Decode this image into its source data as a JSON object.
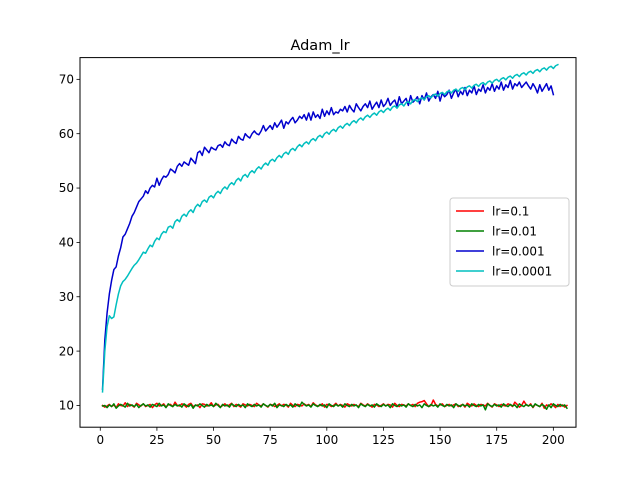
{
  "chart_data": {
    "type": "line",
    "title": "Adam_lr",
    "xlabel": "",
    "ylabel": "",
    "xlim": [
      -8.95,
      210
    ],
    "ylim": [
      6.0,
      74.0
    ],
    "xticks": [
      0,
      25,
      50,
      75,
      100,
      125,
      150,
      175,
      200
    ],
    "yticks": [
      10,
      20,
      30,
      40,
      50,
      60,
      70
    ],
    "grid": false,
    "legend_position": "center-right",
    "series": [
      {
        "name": "lr=0.1",
        "color": "#ff0000",
        "x_start": 1,
        "values": [
          10.0,
          9.7,
          9.9,
          10.2,
          9.8,
          10.1,
          9.6,
          10.3,
          10.0,
          9.9,
          10.5,
          9.8,
          10.2,
          10.0,
          9.7,
          10.4,
          10.1,
          9.9,
          10.3,
          9.8,
          10.0,
          10.2,
          9.6,
          10.1,
          10.4,
          9.9,
          10.0,
          10.3,
          9.7,
          10.1,
          10.2,
          9.8,
          10.6,
          10.0,
          9.9,
          10.3,
          10.1,
          9.7,
          10.2,
          10.4,
          9.8,
          10.0,
          10.1,
          9.6,
          10.3,
          10.2,
          9.9,
          10.0,
          10.5,
          9.8,
          10.1,
          10.2,
          9.7,
          10.0,
          10.3,
          9.9,
          10.1,
          10.4,
          9.8,
          10.2,
          10.0,
          9.7,
          10.3,
          10.1,
          9.9,
          10.2,
          10.0,
          9.8,
          10.4,
          10.1,
          9.9,
          10.3,
          10.0,
          9.7,
          10.2,
          10.1,
          9.8,
          10.0,
          10.3,
          9.9,
          10.2,
          10.1,
          9.7,
          10.4,
          10.0,
          9.8,
          10.2,
          10.1,
          9.9,
          10.3,
          10.0,
          10.2,
          9.8,
          10.5,
          10.1,
          9.9,
          10.0,
          10.3,
          9.7,
          10.2,
          10.1,
          9.8,
          10.0,
          10.4,
          9.9,
          10.2,
          10.0,
          9.7,
          10.3,
          10.1,
          9.9,
          10.2,
          10.0,
          9.8,
          10.4,
          10.1,
          9.9,
          10.3,
          10.0,
          9.7,
          10.2,
          10.1,
          9.8,
          10.0,
          10.3,
          9.9,
          10.2,
          10.1,
          9.7,
          10.4,
          10.0,
          9.8,
          10.2,
          10.1,
          9.9,
          10.3,
          10.0,
          10.2,
          9.8,
          10.4,
          10.6,
          10.7,
          10.9,
          10.3,
          9.8,
          10.0,
          11.0,
          10.2,
          9.9,
          10.1,
          10.3,
          9.8,
          10.0,
          10.2,
          9.9,
          10.1,
          10.3,
          9.8,
          10.0,
          10.2,
          9.7,
          10.4,
          10.1,
          9.9,
          10.3,
          10.0,
          9.8,
          10.2,
          10.1,
          9.9,
          10.4,
          10.0,
          9.7,
          10.3,
          10.1,
          9.8,
          10.2,
          10.0,
          9.9,
          10.3,
          10.1,
          9.8,
          10.6,
          10.2,
          9.7,
          10.0,
          10.8,
          10.1,
          9.9,
          10.3,
          9.6,
          10.2,
          10.0,
          9.8,
          10.4,
          9.5,
          10.1,
          9.9,
          10.3,
          10.0,
          9.6,
          10.2,
          9.8,
          10.1,
          9.7,
          10.0
        ]
      },
      {
        "name": "lr=0.01",
        "color": "#008000",
        "x_start": 1,
        "values": [
          9.9,
          10.0,
          9.6,
          10.1,
          9.8,
          10.3,
          9.5,
          9.9,
          10.2,
          10.0,
          9.7,
          10.4,
          9.9,
          10.1,
          9.8,
          10.2,
          9.6,
          10.0,
          10.3,
          9.9,
          10.1,
          9.7,
          10.2,
          10.0,
          9.8,
          10.4,
          9.9,
          10.1,
          9.6,
          10.3,
          10.0,
          9.8,
          10.2,
          9.9,
          10.1,
          9.7,
          10.3,
          10.0,
          9.8,
          10.2,
          9.5,
          10.1,
          9.9,
          10.3,
          10.0,
          9.7,
          10.2,
          9.9,
          10.1,
          9.8,
          10.4,
          10.0,
          9.6,
          10.2,
          9.9,
          10.1,
          9.7,
          10.3,
          10.0,
          9.8,
          10.2,
          9.9,
          10.1,
          9.6,
          10.3,
          10.0,
          9.8,
          10.2,
          9.9,
          10.1,
          9.7,
          10.3,
          10.0,
          9.8,
          10.2,
          9.9,
          10.4,
          9.6,
          10.1,
          10.0,
          9.8,
          10.2,
          9.9,
          10.1,
          9.7,
          10.3,
          10.0,
          9.8,
          10.6,
          10.2,
          9.9,
          10.1,
          9.7,
          10.3,
          10.0,
          9.8,
          10.2,
          9.9,
          10.1,
          9.6,
          10.3,
          10.0,
          9.8,
          10.2,
          9.9,
          10.1,
          9.7,
          10.3,
          10.0,
          9.8,
          10.2,
          9.9,
          10.1,
          9.6,
          10.3,
          10.0,
          9.8,
          10.2,
          9.9,
          10.1,
          9.7,
          10.3,
          10.0,
          9.8,
          10.2,
          9.9,
          10.1,
          9.6,
          10.3,
          10.0,
          9.8,
          10.2,
          9.9,
          10.1,
          9.7,
          10.3,
          10.0,
          9.8,
          10.2,
          9.9,
          10.1,
          9.6,
          10.3,
          10.0,
          9.8,
          10.2,
          9.9,
          10.1,
          9.7,
          10.3,
          10.0,
          9.8,
          10.2,
          9.9,
          10.1,
          9.6,
          10.3,
          10.0,
          9.8,
          10.2,
          9.9,
          10.1,
          9.7,
          10.3,
          10.0,
          9.8,
          10.2,
          9.9,
          10.1,
          9.2,
          10.3,
          10.0,
          9.8,
          10.2,
          9.9,
          10.1,
          9.7,
          10.3,
          10.0,
          9.8,
          10.2,
          9.9,
          10.1,
          9.6,
          10.3,
          10.0,
          9.8,
          10.2,
          9.9,
          10.1,
          9.7,
          10.3,
          10.0,
          9.8,
          10.2,
          9.9,
          9.3,
          10.1,
          9.6,
          10.3,
          10.0,
          9.8,
          10.2,
          9.9,
          10.1,
          9.5
        ]
      },
      {
        "name": "lr=0.001",
        "color": "#0000cd",
        "x_start": 1,
        "values": [
          13.0,
          22.0,
          27.0,
          30.5,
          33.0,
          35.0,
          35.5,
          37.5,
          39.0,
          41.0,
          41.5,
          42.5,
          43.5,
          44.8,
          45.5,
          46.5,
          47.5,
          48.0,
          48.5,
          49.5,
          49.0,
          50.0,
          50.5,
          50.2,
          51.8,
          50.5,
          51.5,
          52.2,
          52.0,
          52.5,
          53.5,
          53.2,
          52.8,
          54.0,
          54.5,
          54.0,
          54.8,
          54.5,
          54.2,
          55.5,
          55.0,
          54.5,
          56.5,
          56.8,
          56.0,
          57.5,
          57.0,
          56.5,
          57.5,
          57.2,
          57.0,
          57.8,
          58.0,
          57.5,
          58.5,
          58.0,
          57.8,
          59.0,
          58.5,
          58.2,
          59.5,
          59.0,
          58.8,
          60.0,
          59.5,
          59.2,
          60.0,
          60.5,
          60.0,
          59.8,
          60.5,
          61.5,
          60.5,
          61.0,
          61.5,
          60.8,
          62.0,
          61.2,
          61.8,
          62.5,
          61.0,
          62.2,
          61.8,
          62.5,
          63.0,
          62.0,
          62.5,
          63.2,
          62.8,
          63.5,
          62.5,
          63.8,
          62.5,
          64.0,
          63.0,
          63.5,
          62.8,
          64.5,
          63.2,
          64.2,
          63.5,
          64.8,
          63.5,
          64.0,
          63.8,
          64.5,
          64.2,
          65.0,
          64.0,
          65.2,
          64.5,
          64.0,
          65.5,
          64.8,
          64.2,
          65.0,
          65.5,
          64.8,
          66.0,
          64.5,
          65.2,
          65.8,
          64.8,
          66.2,
          65.0,
          65.5,
          66.5,
          65.2,
          65.8,
          66.2,
          65.0,
          66.8,
          65.5,
          66.0,
          66.5,
          65.2,
          67.0,
          65.8,
          66.2,
          66.8,
          65.5,
          67.0,
          66.2,
          67.5,
          66.0,
          66.8,
          67.2,
          66.5,
          67.8,
          66.0,
          67.5,
          66.8,
          67.2,
          68.0,
          66.5,
          67.5,
          68.2,
          66.8,
          67.8,
          67.2,
          68.5,
          67.0,
          68.0,
          67.5,
          68.8,
          67.2,
          68.2,
          67.8,
          69.0,
          67.5,
          68.5,
          68.0,
          69.2,
          67.8,
          68.8,
          68.2,
          69.5,
          68.0,
          69.0,
          68.5,
          69.8,
          68.2,
          69.2,
          68.8,
          69.5,
          68.5,
          69.0,
          69.5,
          68.8,
          68.2,
          69.2,
          68.5,
          67.5,
          69.0,
          67.8,
          68.5,
          69.2,
          68.0,
          68.8,
          67.2
        ]
      },
      {
        "name": "lr=0.0001",
        "color": "#00bfbf",
        "x_start": 1,
        "values": [
          12.5,
          20.0,
          24.5,
          26.5,
          26.0,
          26.3,
          28.5,
          30.5,
          32.0,
          32.8,
          33.2,
          33.8,
          34.5,
          35.2,
          35.8,
          36.2,
          36.8,
          37.5,
          38.2,
          38.0,
          38.8,
          39.5,
          39.2,
          40.2,
          40.8,
          40.5,
          41.5,
          42.0,
          41.8,
          42.8,
          43.0,
          42.6,
          43.8,
          44.2,
          43.8,
          44.8,
          45.2,
          44.8,
          45.6,
          46.0,
          45.5,
          46.5,
          47.0,
          46.6,
          47.5,
          47.8,
          47.4,
          48.3,
          48.6,
          48.2,
          49.0,
          49.4,
          49.0,
          49.8,
          50.2,
          49.8,
          50.6,
          51.0,
          50.6,
          51.4,
          51.8,
          51.3,
          52.2,
          52.5,
          52.0,
          52.8,
          53.2,
          52.8,
          53.5,
          53.9,
          53.5,
          54.2,
          54.6,
          54.2,
          55.0,
          55.3,
          54.9,
          55.6,
          56.0,
          55.6,
          56.3,
          56.6,
          56.2,
          57.0,
          57.3,
          56.9,
          57.6,
          58.0,
          57.6,
          58.2,
          58.5,
          58.1,
          58.8,
          59.1,
          58.7,
          59.4,
          59.7,
          59.3,
          60.0,
          60.3,
          59.9,
          60.5,
          60.8,
          60.4,
          61.1,
          61.4,
          61.0,
          61.6,
          61.9,
          61.5,
          62.1,
          62.4,
          62.0,
          62.6,
          62.9,
          62.5,
          63.1,
          63.4,
          63.0,
          63.5,
          63.8,
          63.4,
          64.0,
          64.3,
          63.9,
          64.4,
          64.7,
          64.3,
          64.9,
          65.1,
          64.7,
          65.3,
          65.5,
          65.1,
          65.7,
          65.9,
          65.5,
          66.1,
          66.3,
          65.9,
          66.4,
          66.6,
          66.2,
          66.8,
          67.0,
          66.6,
          67.1,
          67.3,
          66.9,
          67.4,
          67.6,
          67.2,
          67.7,
          67.9,
          67.5,
          68.0,
          68.2,
          67.8,
          68.3,
          68.5,
          68.1,
          68.6,
          68.8,
          68.4,
          68.9,
          69.1,
          68.7,
          69.2,
          69.4,
          69.0,
          69.5,
          69.7,
          69.3,
          69.8,
          70.0,
          69.6,
          70.1,
          70.3,
          69.9,
          70.4,
          70.6,
          70.2,
          70.7,
          70.9,
          70.5,
          71.0,
          71.2,
          70.8,
          71.3,
          71.5,
          71.1,
          71.6,
          71.8,
          71.4,
          71.9,
          72.1,
          71.7,
          72.2,
          72.4,
          72.0,
          72.5,
          72.7
        ]
      }
    ]
  }
}
